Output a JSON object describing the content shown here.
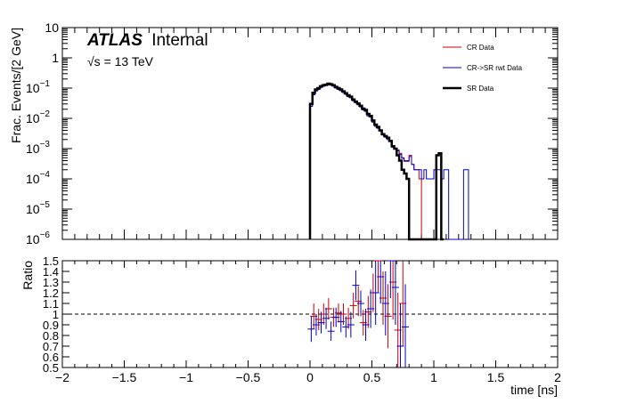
{
  "chart_data": {
    "type": "line",
    "label": {
      "experiment": "ATLAS",
      "status": "Internal",
      "energy_prefix": "√s",
      "energy_rest": " = 13 TeV"
    },
    "xlabel": "time [ns]",
    "xlim": [
      -2,
      2
    ],
    "x_ticks": [
      -2,
      -1.5,
      -1,
      -0.5,
      0,
      0.5,
      1,
      1.5,
      2
    ],
    "x_tick_labels": [
      "−2",
      "−1.5",
      "−1",
      "−0.5",
      "0",
      "0.5",
      "1",
      "1.5",
      "2"
    ],
    "top": {
      "ylabel": "Frac. Events/[2 GeV]",
      "yscale": "log",
      "ylim": [
        1e-06,
        10
      ],
      "y_ticks": [
        {
          "v": 10,
          "m": "10",
          "e": ""
        },
        {
          "v": 1,
          "m": "1",
          "e": ""
        },
        {
          "v": 0.1,
          "m": "10",
          "e": "−1"
        },
        {
          "v": 0.01,
          "m": "10",
          "e": "−2"
        },
        {
          "v": 0.001,
          "m": "10",
          "e": "−3"
        },
        {
          "v": 0.0001,
          "m": "10",
          "e": "−4"
        },
        {
          "v": 1e-05,
          "m": "10",
          "e": "−5"
        },
        {
          "v": 1e-06,
          "m": "10",
          "e": "−6"
        }
      ],
      "bin_width": 0.02,
      "series": [
        {
          "name": "CR Data",
          "color": "#cc0000",
          "width": 1,
          "x0": [
            0.0,
            0.02,
            0.04,
            0.06,
            0.08,
            0.1,
            0.12,
            0.14,
            0.16,
            0.18,
            0.2,
            0.22,
            0.24,
            0.26,
            0.28,
            0.3,
            0.32,
            0.34,
            0.36,
            0.38,
            0.4,
            0.42,
            0.44,
            0.46,
            0.48,
            0.5,
            0.52,
            0.54,
            0.56,
            0.58,
            0.6,
            0.62,
            0.64,
            0.66,
            0.68,
            0.7,
            0.72,
            0.74,
            0.76,
            0.78,
            0.8,
            0.82,
            0.84,
            0.86,
            0.88
          ],
          "y": [
            0.028,
            0.065,
            0.085,
            0.095,
            0.11,
            0.12,
            0.125,
            0.135,
            0.13,
            0.12,
            0.105,
            0.095,
            0.085,
            0.075,
            0.065,
            0.055,
            0.05,
            0.04,
            0.035,
            0.03,
            0.025,
            0.02,
            0.018,
            0.013,
            0.012,
            0.008,
            0.006,
            0.005,
            0.004,
            0.003,
            0.0025,
            0.0022,
            0.0018,
            0.0012,
            0.001,
            0.0009,
            0.0007,
            0.0005,
            0.0004,
            0.0004,
            0.0006,
            0.0003,
            0.0002,
            0.0002,
            0.0001
          ]
        },
        {
          "name": "CR->SR rwt Data",
          "color": "#0000cc",
          "width": 1,
          "x0": [
            0.0,
            0.02,
            0.04,
            0.06,
            0.08,
            0.1,
            0.12,
            0.14,
            0.16,
            0.18,
            0.2,
            0.22,
            0.24,
            0.26,
            0.28,
            0.3,
            0.32,
            0.34,
            0.36,
            0.38,
            0.4,
            0.42,
            0.44,
            0.46,
            0.48,
            0.5,
            0.52,
            0.54,
            0.56,
            0.58,
            0.6,
            0.62,
            0.64,
            0.66,
            0.68,
            0.7,
            0.72,
            0.74,
            0.76,
            0.78,
            0.8,
            0.82,
            0.84,
            0.86,
            0.88,
            0.9,
            0.92,
            0.94,
            0.96,
            0.98,
            1.0,
            1.02,
            1.04,
            1.06,
            1.08,
            1.1,
            1.12,
            1.14,
            1.16,
            1.18,
            1.2,
            1.22,
            1.24,
            1.26,
            1.28
          ],
          "y": [
            0.025,
            0.06,
            0.08,
            0.09,
            0.105,
            0.115,
            0.12,
            0.13,
            0.125,
            0.115,
            0.1,
            0.09,
            0.082,
            0.072,
            0.062,
            0.052,
            0.048,
            0.038,
            0.033,
            0.028,
            0.024,
            0.019,
            0.017,
            0.012,
            0.011,
            0.0075,
            0.0055,
            0.0047,
            0.0038,
            0.0028,
            0.0024,
            0.002,
            0.0017,
            0.0011,
            0.00095,
            0.00085,
            0.00065,
            0.00048,
            0.00038,
            0.00038,
            0.00055,
            0.0003,
            0.0002,
            0.0002,
            0.0002,
            0.0001,
            0.0002,
            0.0001,
            0.0001,
            0.0001,
            0.0002,
            0.0002,
            0.0002,
            0.0001,
            0.0002,
            0.0002,
            0,
            0,
            0,
            0,
            0,
            0,
            0.0002,
            0.0002,
            0
          ]
        },
        {
          "name": "SR Data",
          "color": "#000000",
          "width": 2.5,
          "x0": [
            0.0,
            0.02,
            0.04,
            0.06,
            0.08,
            0.1,
            0.12,
            0.14,
            0.16,
            0.18,
            0.2,
            0.22,
            0.24,
            0.26,
            0.28,
            0.3,
            0.32,
            0.34,
            0.36,
            0.38,
            0.4,
            0.42,
            0.44,
            0.46,
            0.48,
            0.5,
            0.52,
            0.54,
            0.56,
            0.58,
            0.6,
            0.62,
            0.64,
            0.66,
            0.68,
            0.7,
            0.72,
            0.74,
            0.76,
            0.78,
            0.8,
            0.82,
            0.84,
            0.86,
            0.88,
            0.9,
            0.92,
            0.94,
            0.96,
            0.98,
            1.0,
            1.02,
            1.04,
            1.06
          ],
          "y": [
            0.03,
            0.07,
            0.09,
            0.1,
            0.115,
            0.125,
            0.13,
            0.14,
            0.135,
            0.125,
            0.11,
            0.1,
            0.09,
            0.078,
            0.068,
            0.058,
            0.052,
            0.042,
            0.036,
            0.031,
            0.026,
            0.021,
            0.019,
            0.014,
            0.012,
            0.0085,
            0.0062,
            0.0052,
            0.004,
            0.003,
            0.0026,
            0.0023,
            0.0018,
            0.0012,
            0.001,
            0.0006,
            0.0004,
            0.0002,
            0.00015,
            0.0001,
            0,
            0,
            0,
            0,
            0,
            0,
            0,
            0,
            0,
            0,
            0,
            0.0006,
            0.0007,
            0
          ]
        }
      ]
    },
    "bottom": {
      "ylabel": "Ratio",
      "ylim": [
        0.5,
        1.5
      ],
      "y_ticks": [
        0.5,
        0.6,
        0.7,
        0.8,
        0.9,
        1,
        1.1,
        1.2,
        1.3,
        1.4,
        1.5
      ],
      "y_tick_labels": [
        "0.5",
        "0.6",
        "0.7",
        "0.8",
        "0.9",
        "1",
        "1.1",
        "1.2",
        "1.3",
        "1.4",
        "1.5"
      ],
      "reference_line": 1,
      "series": [
        {
          "name": "CR Data",
          "color": "#cc0000",
          "points": [
            [
              0.03,
              0.98,
              0.12
            ],
            [
              0.07,
              0.95,
              0.1
            ],
            [
              0.11,
              1.0,
              0.1
            ],
            [
              0.15,
              1.05,
              0.1
            ],
            [
              0.19,
              0.97,
              0.09
            ],
            [
              0.23,
              1.01,
              0.09
            ],
            [
              0.27,
              1.0,
              0.1
            ],
            [
              0.31,
              0.96,
              0.1
            ],
            [
              0.35,
              1.08,
              0.12
            ],
            [
              0.39,
              1.12,
              0.14
            ],
            [
              0.43,
              0.92,
              0.12
            ],
            [
              0.47,
              1.02,
              0.15
            ],
            [
              0.51,
              1.2,
              0.18
            ],
            [
              0.55,
              1.5,
              0.3
            ],
            [
              0.59,
              1.15,
              0.25
            ],
            [
              0.63,
              0.98,
              0.3
            ],
            [
              0.67,
              1.3,
              0.35
            ],
            [
              0.71,
              0.85,
              0.35
            ],
            [
              0.75,
              1.1,
              0.4
            ]
          ]
        },
        {
          "name": "CR->SR rwt Data",
          "color": "#0000cc",
          "points": [
            [
              0.01,
              0.86,
              0.12
            ],
            [
              0.05,
              0.9,
              0.1
            ],
            [
              0.09,
              0.92,
              0.1
            ],
            [
              0.13,
              0.96,
              0.1
            ],
            [
              0.17,
              0.84,
              0.09
            ],
            [
              0.21,
              0.97,
              0.09
            ],
            [
              0.25,
              0.93,
              0.1
            ],
            [
              0.29,
              0.88,
              0.1
            ],
            [
              0.33,
              0.9,
              0.12
            ],
            [
              0.37,
              1.27,
              0.14
            ],
            [
              0.41,
              1.1,
              0.12
            ],
            [
              0.45,
              0.9,
              0.15
            ],
            [
              0.49,
              1.05,
              0.18
            ],
            [
              0.53,
              1.2,
              0.3
            ],
            [
              0.57,
              1.35,
              0.25
            ],
            [
              0.61,
              1.1,
              0.3
            ],
            [
              0.65,
              1.5,
              0.35
            ],
            [
              0.69,
              1.25,
              0.35
            ],
            [
              0.73,
              0.7,
              0.4
            ],
            [
              0.77,
              0.88,
              0.4
            ]
          ]
        }
      ]
    },
    "legend": {
      "placement": "top-right",
      "entries": [
        {
          "name": "CR Data",
          "color": "#cc0000",
          "width": 1
        },
        {
          "name": "CR->SR rwt Data",
          "color": "#0000cc",
          "width": 1
        },
        {
          "name": "SR Data",
          "color": "#000000",
          "width": 2.5
        }
      ]
    }
  }
}
